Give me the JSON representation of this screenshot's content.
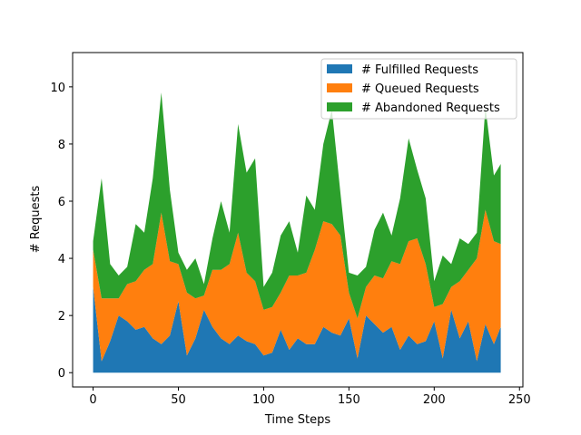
{
  "chart_data": {
    "type": "area",
    "stacked": true,
    "xlabel": "Time Steps",
    "ylabel": "# Requests",
    "xlim": [
      -12,
      252
    ],
    "ylim": [
      -0.5,
      11.2
    ],
    "xticks": [
      0,
      50,
      100,
      150,
      200,
      250
    ],
    "yticks": [
      0,
      2,
      4,
      6,
      8,
      10
    ],
    "grid": false,
    "legend_position": "top-right",
    "x": [
      0,
      5,
      10,
      15,
      20,
      25,
      30,
      35,
      40,
      45,
      50,
      55,
      60,
      65,
      70,
      75,
      80,
      85,
      90,
      95,
      100,
      105,
      110,
      115,
      120,
      125,
      130,
      135,
      140,
      145,
      150,
      155,
      160,
      165,
      170,
      175,
      180,
      185,
      190,
      195,
      200,
      205,
      210,
      215,
      220,
      225,
      230,
      235,
      239
    ],
    "series": [
      {
        "name": "# Fulfilled Requests",
        "color": "#1f77b4",
        "values": [
          3.0,
          0.4,
          1.1,
          2.0,
          1.8,
          1.5,
          1.6,
          1.2,
          1.0,
          1.3,
          2.5,
          0.6,
          1.2,
          2.2,
          1.6,
          1.2,
          1.0,
          1.3,
          1.1,
          1.0,
          0.6,
          0.7,
          1.5,
          0.8,
          1.2,
          1.0,
          1.0,
          1.6,
          1.4,
          1.3,
          1.9,
          0.5,
          2.0,
          1.7,
          1.4,
          1.6,
          0.8,
          1.3,
          1.0,
          1.1,
          1.8,
          0.5,
          2.2,
          1.2,
          1.8,
          0.4,
          1.7,
          1.0,
          1.6
        ]
      },
      {
        "name": "# Queued Requests",
        "color": "#ff7f0e",
        "values": [
          1.3,
          2.2,
          1.5,
          0.6,
          1.3,
          1.7,
          2.0,
          2.6,
          4.6,
          2.6,
          1.3,
          2.2,
          1.4,
          0.5,
          2.0,
          2.4,
          2.8,
          3.6,
          2.4,
          2.2,
          1.6,
          1.6,
          1.3,
          2.6,
          2.2,
          2.5,
          3.3,
          3.7,
          3.8,
          3.5,
          0.9,
          1.4,
          1.0,
          1.7,
          1.9,
          2.3,
          3.0,
          3.3,
          3.7,
          2.7,
          0.5,
          1.9,
          0.8,
          2.0,
          1.8,
          3.6,
          4.0,
          3.6,
          2.9
        ]
      },
      {
        "name": "# Abandoned Requests",
        "color": "#2ca02c",
        "values": [
          0.3,
          4.2,
          1.2,
          0.8,
          0.6,
          2.0,
          1.3,
          3.0,
          4.2,
          2.5,
          0.4,
          0.8,
          1.4,
          0.4,
          1.1,
          2.4,
          1.1,
          3.8,
          3.5,
          4.3,
          0.8,
          1.2,
          2.0,
          1.9,
          0.8,
          2.7,
          1.4,
          2.7,
          4.0,
          1.5,
          0.7,
          1.5,
          0.7,
          1.6,
          2.3,
          0.9,
          2.3,
          3.6,
          2.4,
          2.3,
          0.9,
          1.7,
          0.8,
          1.5,
          0.9,
          0.9,
          3.6,
          2.3,
          2.8
        ]
      }
    ]
  }
}
